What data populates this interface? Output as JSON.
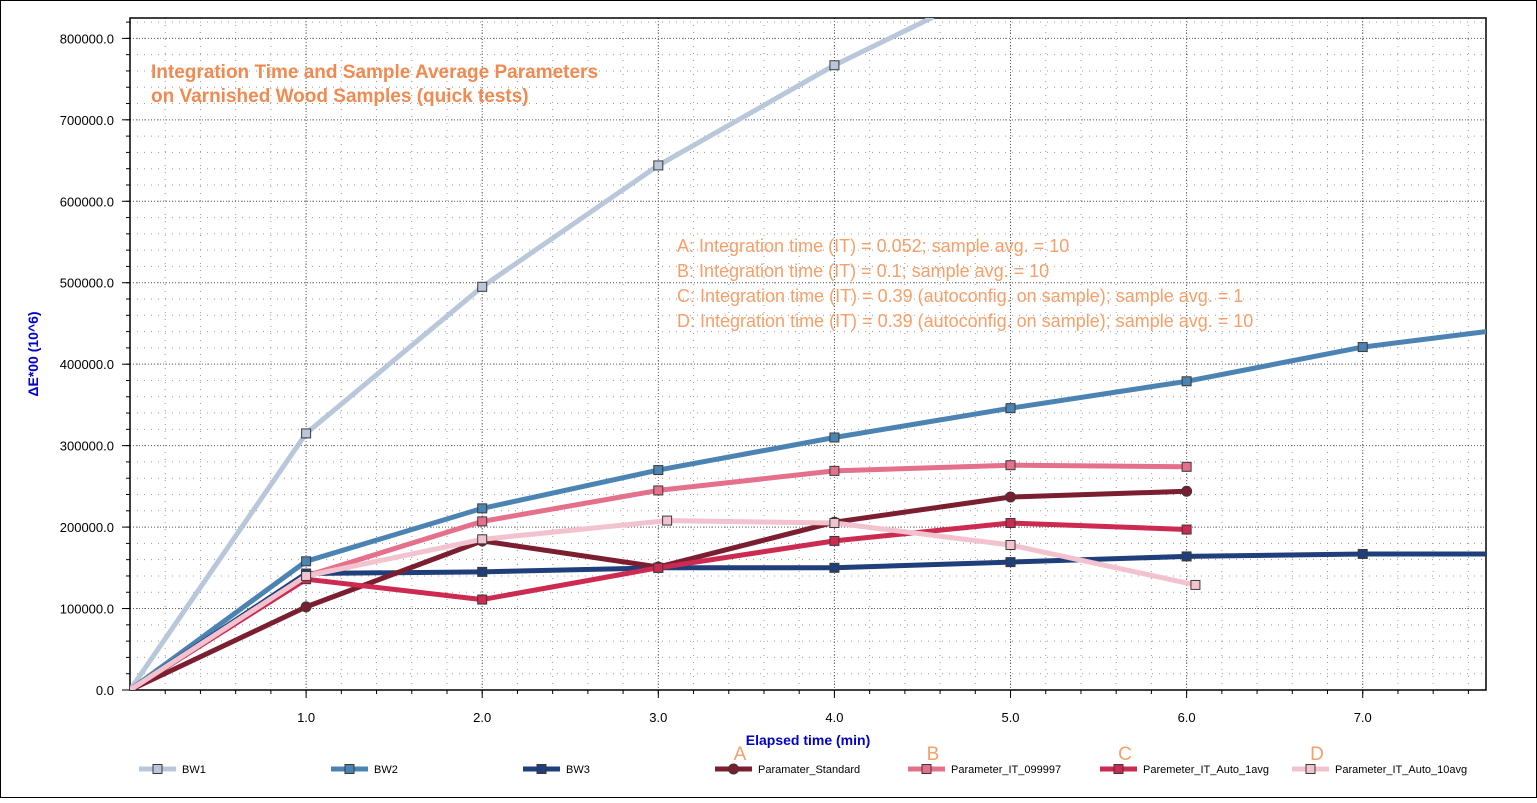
{
  "chart_data": {
    "type": "line",
    "title_lines": [
      "Integration Time and Sample Average Parameters",
      "on Varnished Wood Samples (quick tests)"
    ],
    "xlabel": "Elapsed time (min)",
    "ylabel": "ΔE*00 (10^6)",
    "xlim": [
      0,
      7.7
    ],
    "ylim": [
      0,
      825000
    ],
    "x_ticks": [
      1.0,
      2.0,
      3.0,
      4.0,
      5.0,
      6.0,
      7.0
    ],
    "x_tick_labels": [
      "1.0",
      "2.0",
      "3.0",
      "4.0",
      "5.0",
      "6.0",
      "7.0"
    ],
    "y_ticks": [
      0,
      100000,
      200000,
      300000,
      400000,
      500000,
      600000,
      700000,
      800000
    ],
    "y_tick_labels": [
      "0.0",
      "100000.0",
      "200000.0",
      "300000.0",
      "400000.0",
      "500000.0",
      "600000.0",
      "700000.0",
      "800000.0"
    ],
    "grid": true,
    "legend_position": "bottom",
    "annotations": [
      "A: Integration time (IT) = 0.052; sample avg. = 10",
      "B: Integration time (IT) = 0.1; sample avg. = 10",
      "C: Integration time (IT) = 0.39 (autoconfig. on sample); sample avg. = 1",
      "D: Integration time (IT) = 0.39 (autoconfig. on sample); sample avg. = 10"
    ],
    "colors": {
      "annotation": "#F5A06A",
      "title": "#F08A50",
      "axis_label": "#0000CC"
    },
    "series": [
      {
        "name": "BW1",
        "color": "#B8C8DA",
        "marker": "square",
        "letter": "",
        "x": [
          0,
          1.0,
          2.0,
          3.0,
          4.0,
          4.55
        ],
        "y": [
          0,
          315000,
          495000,
          644000,
          767000,
          825000
        ]
      },
      {
        "name": "BW2",
        "color": "#4B84B2",
        "marker": "square",
        "letter": "",
        "x": [
          0,
          1.0,
          2.0,
          3.0,
          4.0,
          5.0,
          6.0,
          7.0,
          7.7
        ],
        "y": [
          0,
          158000,
          223000,
          270000,
          310000,
          346000,
          379000,
          421000,
          440000
        ]
      },
      {
        "name": "BW3",
        "color": "#1F3F7A",
        "marker": "square",
        "letter": "",
        "x": [
          0,
          1.0,
          2.0,
          3.0,
          4.0,
          5.0,
          6.0,
          7.0,
          7.7
        ],
        "y": [
          0,
          143000,
          145000,
          150000,
          150000,
          157000,
          164000,
          167000,
          167000
        ]
      },
      {
        "name": "Paramater_Standard",
        "color": "#7A1E30",
        "marker": "circle",
        "letter": "A",
        "x": [
          0,
          1.0,
          2.0,
          3.0,
          4.0,
          5.0,
          6.0
        ],
        "y": [
          0,
          102000,
          183000,
          151000,
          206000,
          237000,
          244000
        ]
      },
      {
        "name": "Parameter_IT_099997",
        "color": "#E5708C",
        "marker": "square",
        "letter": "B",
        "x": [
          0,
          1.0,
          2.0,
          3.0,
          4.0,
          5.0,
          6.0
        ],
        "y": [
          0,
          140000,
          207000,
          245000,
          269000,
          276000,
          274000
        ]
      },
      {
        "name": "Paremeter_IT_Auto_1avg",
        "color": "#CC2A50",
        "marker": "square",
        "letter": "C",
        "x": [
          0,
          1.0,
          2.0,
          3.0,
          4.0,
          5.0,
          6.0
        ],
        "y": [
          0,
          136000,
          111000,
          150000,
          183000,
          205000,
          197000
        ]
      },
      {
        "name": "Parameter_IT_Auto_10avg",
        "color": "#F2C3CF",
        "marker": "square",
        "letter": "D",
        "x": [
          0,
          1.0,
          2.0,
          3.05,
          4.0,
          5.0,
          6.05
        ],
        "y": [
          0,
          140000,
          185000,
          208000,
          205000,
          178000,
          129000
        ]
      }
    ]
  }
}
